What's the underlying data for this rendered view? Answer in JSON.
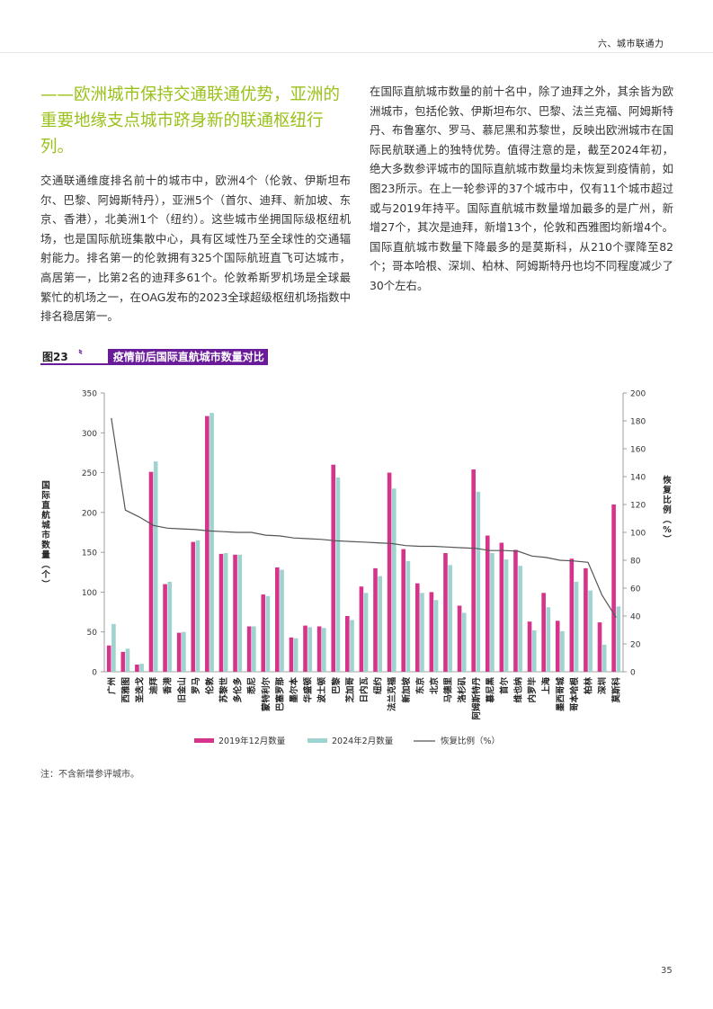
{
  "page": {
    "section_tag": "六、城市联通力",
    "headline": "——欧洲城市保持交通联通优势，亚洲的重要地缘支点城市跻身新的联通枢纽行列。",
    "paragraph_left": "交通联通维度排名前十的城市中，欧洲4个（伦敦、伊斯坦布尔、巴黎、阿姆斯特丹），亚洲5个（首尔、迪拜、新加坡、东京、香港），北美洲1个（纽约）。这些城市坐拥国际级枢纽机场，也是国际航班集散中心，具有区域性乃至全球性的交通辐射能力。排名第一的伦敦拥有325个国际航班直飞可达城市，高居第一，比第2名的迪拜多61个。伦敦希斯罗机场是全球最繁忙的机场之一，在OAG发布的2023全球超级枢纽机场指数中排名稳居第一。",
    "paragraph_right": "在国际直航城市数量的前十名中，除了迪拜之外，其余皆为欧洲城市，包括伦敦、伊斯坦布尔、巴黎、法兰克福、阿姆斯特丹、布鲁塞尔、罗马、慕尼黑和苏黎世，反映出欧洲城市在国际民航联通上的独特优势。值得注意的是，截至2024年初，绝大多数参评城市的国际直航城市数量均未恢复到疫情前，如图23所示。在上一轮参评的37个城市中，仅有11个城市超过或与2019年持平。国际直航城市数量增加最多的是广州，新增27个，其次是迪拜，新增13个，伦敦和西雅图均新增4个。国际直航城市数量下降最多的是莫斯科，从210个骤降至82个；哥本哈根、深圳、柏林、阿姆斯特丹也均不同程度减少了30个左右。",
    "figure_number": "图23",
    "figure_separator": "〝",
    "figure_title": "疫情前后国际直航城市数量对比",
    "footnote": "注：不含新增参评城市。",
    "page_number": "35"
  },
  "colors": {
    "accent_green": "#9ac11a",
    "figure_purple": "#6a1b9a",
    "bar_2019": "#d6338a",
    "bar_2024": "#9ed3cf",
    "line_ratio": "#555555"
  },
  "chart_data": {
    "type": "bar",
    "categories": [
      "广州",
      "西雅图",
      "圣迭戈",
      "迪拜",
      "香港",
      "旧金山",
      "罗马",
      "伦敦",
      "苏黎世",
      "多伦多",
      "悉尼",
      "蒙特利尔",
      "巴塞罗那",
      "墨尔本",
      "华盛顿",
      "波士顿",
      "巴黎",
      "芝加哥",
      "日内瓦",
      "纽约",
      "法兰克福",
      "新加坡",
      "东京",
      "北京",
      "马德里",
      "洛杉矶",
      "阿姆斯特丹",
      "慕尼黑",
      "首尔",
      "维也纳",
      "内罗毕",
      "上海",
      "墨西哥城",
      "哥本哈根",
      "柏林",
      "深圳",
      "莫斯科"
    ],
    "series": [
      {
        "name": "2019年12月数量",
        "values": [
          33,
          25,
          9,
          251,
          110,
          49,
          163,
          321,
          148,
          147,
          57,
          97,
          131,
          43,
          58,
          57,
          260,
          70,
          107,
          130,
          250,
          154,
          111,
          100,
          149,
          83,
          254,
          171,
          162,
          153,
          63,
          99,
          64,
          142,
          130,
          62,
          210
        ]
      },
      {
        "name": "2024年2月数量",
        "values": [
          60,
          29,
          10,
          264,
          113,
          50,
          165,
          325,
          149,
          147,
          57,
          95,
          128,
          42,
          56,
          55,
          244,
          65,
          99,
          120,
          230,
          139,
          99,
          90,
          134,
          74,
          226,
          149,
          141,
          133,
          52,
          81,
          51,
          113,
          102,
          34,
          82
        ]
      },
      {
        "name": "恢复比例（%）",
        "axis": "right",
        "values": [
          182,
          116,
          111,
          105,
          103,
          102.5,
          102,
          101,
          100.5,
          100,
          100,
          98,
          97.5,
          96,
          95.5,
          95,
          94,
          93.5,
          93,
          92.5,
          92,
          90.5,
          90,
          90,
          89.5,
          89,
          88.5,
          87,
          87,
          86.5,
          83,
          82,
          80,
          79.5,
          78.5,
          55,
          39
        ]
      }
    ],
    "y_left": {
      "label": "国际直航城市数量（个）",
      "min": 0,
      "max": 350,
      "ticks": [
        0,
        50,
        100,
        150,
        200,
        250,
        300,
        350
      ]
    },
    "y_right": {
      "label": "恢复比例（%）",
      "min": 0,
      "max": 200,
      "ticks": [
        0,
        20,
        40,
        60,
        80,
        100,
        120,
        140,
        160,
        180,
        200
      ]
    },
    "legend": {
      "position": "bottom",
      "items": [
        "2019年12月数量",
        "2024年2月数量",
        "恢复比例（%）"
      ]
    },
    "grid": false
  }
}
